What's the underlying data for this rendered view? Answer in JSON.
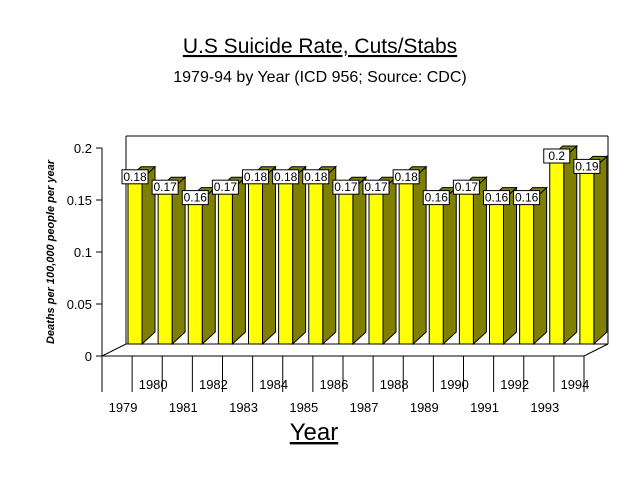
{
  "chart_data": {
    "type": "bar",
    "title": "U.S Suicide Rate, Cuts/Stabs",
    "subtitle": "1979-94 by Year (ICD 956; Source: CDC)",
    "xlabel": "Year",
    "ylabel": "Deaths per 100,000 people per year",
    "ylim": [
      0,
      0.2
    ],
    "yticks": [
      "0",
      "0.05",
      "0.1",
      "0.15",
      "0.2"
    ],
    "categories": [
      "1979",
      "1980",
      "1981",
      "1982",
      "1983",
      "1984",
      "1985",
      "1986",
      "1987",
      "1988",
      "1989",
      "1990",
      "1991",
      "1992",
      "1993",
      "1994"
    ],
    "values": [
      0.18,
      0.17,
      0.16,
      0.17,
      0.18,
      0.18,
      0.18,
      0.17,
      0.17,
      0.18,
      0.16,
      0.17,
      0.16,
      0.16,
      0.2,
      0.19
    ],
    "data_labels": [
      "0.18",
      "0.17",
      "0.16",
      "0.17",
      "0.18",
      "0.18",
      "0.18",
      "0.17",
      "0.17",
      "0.18",
      "0.16",
      "0.17",
      "0.16",
      "0.16",
      "0.2",
      "0.19"
    ],
    "grid": false,
    "legend": "none",
    "colors": {
      "bar_front": "#FFFF00",
      "bar_side": "#808000",
      "bar_top": "#808000",
      "axis": "#000000"
    }
  }
}
